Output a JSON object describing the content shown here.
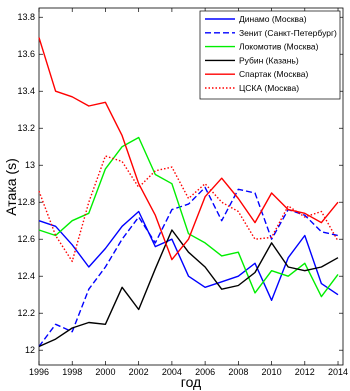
{
  "chart_data": {
    "type": "line",
    "title": "",
    "xlabel": "год",
    "ylabel": "Атака (s)",
    "xlim": [
      1996,
      2014.3
    ],
    "ylim": [
      11.92,
      13.85
    ],
    "xticks": [
      1996,
      1998,
      2000,
      2002,
      2004,
      2006,
      2008,
      2010,
      2012,
      2014
    ],
    "yticks": [
      12,
      12.2,
      12.4,
      12.6,
      12.8,
      13,
      13.2,
      13.4,
      13.6,
      13.8
    ],
    "ytick_labels": [
      "12",
      "12.2",
      "12.4",
      "12.6",
      "12.8",
      "13",
      "13.2",
      "13.4",
      "13.6",
      "13.8"
    ],
    "legend_position": "top-right",
    "grid": false,
    "series": [
      {
        "name": "Динамо (Москва)",
        "color": "#0000ff",
        "dash": "solid",
        "x": [
          1996,
          1997,
          1998,
          1999,
          2000,
          2001,
          2002,
          2003,
          2004,
          2005,
          2006,
          2007,
          2008,
          2009,
          2010,
          2011,
          2012,
          2013,
          2014
        ],
        "y": [
          12.7,
          12.67,
          12.57,
          12.45,
          12.55,
          12.67,
          12.75,
          12.56,
          12.6,
          12.4,
          12.34,
          12.37,
          12.4,
          12.47,
          12.27,
          12.5,
          12.62,
          12.36,
          12.3
        ]
      },
      {
        "name": "Зенит (Санкт-Петербург)",
        "color": "#0000ff",
        "dash": "dashed",
        "x": [
          1996,
          1997,
          1998,
          1999,
          2000,
          2001,
          2002,
          2003,
          2004,
          2005,
          2006,
          2007,
          2008,
          2009,
          2010,
          2011,
          2012,
          2013,
          2014
        ],
        "y": [
          12.02,
          12.14,
          12.1,
          12.33,
          12.45,
          12.6,
          12.72,
          12.58,
          12.76,
          12.79,
          12.88,
          12.7,
          12.87,
          12.85,
          12.6,
          12.76,
          12.73,
          12.64,
          12.62
        ]
      },
      {
        "name": "Локомотив (Москва)",
        "color": "#00ee00",
        "dash": "solid",
        "x": [
          1996,
          1997,
          1998,
          1999,
          2000,
          2001,
          2002,
          2003,
          2004,
          2005,
          2006,
          2007,
          2008,
          2009,
          2010,
          2011,
          2012,
          2013,
          2014
        ],
        "y": [
          12.65,
          12.62,
          12.7,
          12.74,
          12.98,
          13.1,
          13.15,
          12.95,
          12.9,
          12.63,
          12.58,
          12.51,
          12.53,
          12.31,
          12.43,
          12.4,
          12.47,
          12.29,
          12.41
        ]
      },
      {
        "name": "Рубин (Казань)",
        "color": "#000000",
        "dash": "solid",
        "x": [
          1996,
          1997,
          1998,
          1999,
          2000,
          2001,
          2002,
          2003,
          2004,
          2005,
          2006,
          2007,
          2008,
          2009,
          2010,
          2011,
          2012,
          2013,
          2014
        ],
        "y": [
          12.02,
          12.06,
          12.12,
          12.15,
          12.14,
          12.34,
          12.22,
          12.44,
          12.65,
          12.53,
          12.45,
          12.33,
          12.35,
          12.42,
          12.58,
          12.45,
          12.43,
          12.45,
          12.5
        ]
      },
      {
        "name": "Спартак (Москва)",
        "color": "#ff0000",
        "dash": "solid",
        "x": [
          1996,
          1997,
          1998,
          1999,
          2000,
          2001,
          2002,
          2003,
          2004,
          2005,
          2006,
          2007,
          2008,
          2009,
          2010,
          2011,
          2012,
          2013,
          2014
        ],
        "y": [
          13.69,
          13.4,
          13.37,
          13.32,
          13.34,
          13.16,
          12.9,
          12.73,
          12.49,
          12.6,
          12.83,
          12.93,
          12.82,
          12.69,
          12.85,
          12.76,
          12.74,
          12.69,
          12.8
        ]
      },
      {
        "name": "ЦСКА (Москва)",
        "color": "#ff0000",
        "dash": "dotted",
        "x": [
          1996,
          1997,
          1998,
          1999,
          2000,
          2001,
          2002,
          2003,
          2004,
          2005,
          2006,
          2007,
          2008,
          2009,
          2010,
          2011,
          2012,
          2013,
          2014
        ],
        "y": [
          12.86,
          12.62,
          12.48,
          12.8,
          13.05,
          13.02,
          12.88,
          12.97,
          12.99,
          12.82,
          12.9,
          12.8,
          12.75,
          12.6,
          12.61,
          12.78,
          12.72,
          12.75,
          12.59
        ]
      }
    ]
  }
}
